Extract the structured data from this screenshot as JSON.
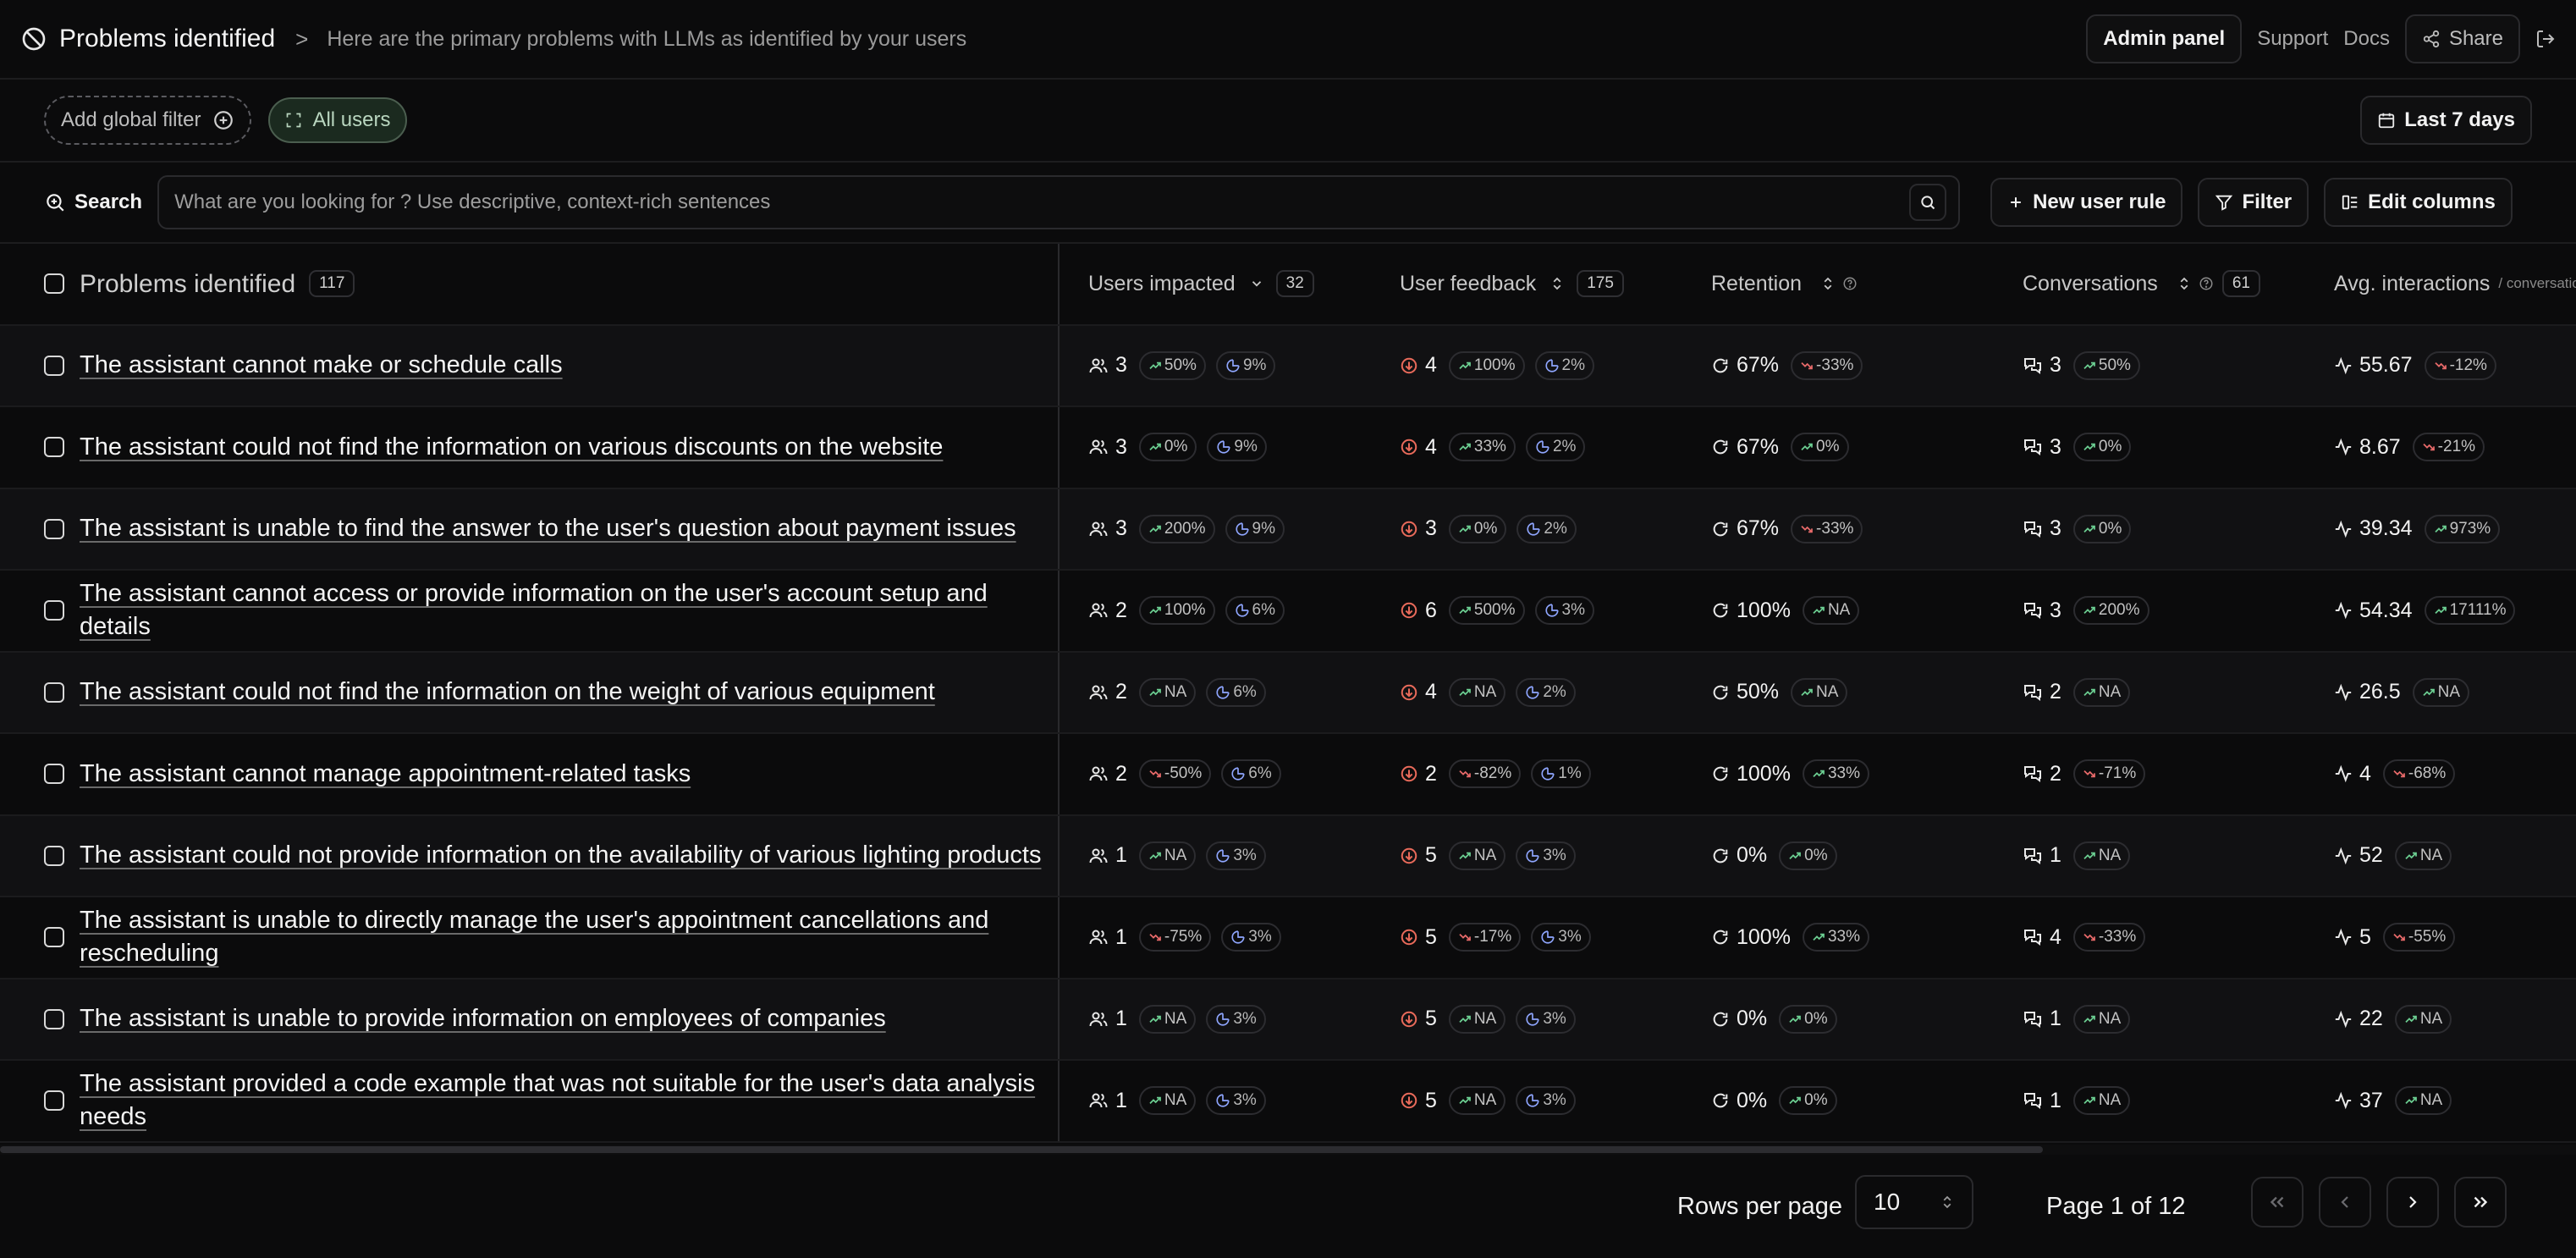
{
  "header": {
    "title": "Problems identified",
    "separator": ">",
    "subtitle": "Here are the primary problems with LLMs as identified by your users",
    "admin_label": "Admin panel",
    "support_label": "Support",
    "docs_label": "Docs",
    "share_label": "Share"
  },
  "filters": {
    "add_global_label": "Add global filter",
    "all_users_label": "All users",
    "date_range_label": "Last 7 days"
  },
  "search": {
    "label": "Search",
    "placeholder": "What are you looking for ? Use descriptive, context-rich sentences",
    "new_rule_label": "New user rule",
    "filter_label": "Filter",
    "edit_columns_label": "Edit columns"
  },
  "table": {
    "columns": {
      "problems": {
        "label": "Problems identified",
        "count": "117"
      },
      "users": {
        "label": "Users impacted",
        "count": "32"
      },
      "feedback": {
        "label": "User feedback",
        "count": "175"
      },
      "retention": {
        "label": "Retention"
      },
      "conversations": {
        "label": "Conversations",
        "count": "61"
      },
      "avg": {
        "label": "Avg. interactions",
        "suffix": "/ conversation"
      }
    },
    "rows": [
      {
        "problem": "The assistant cannot make or schedule calls",
        "users": {
          "value": "3",
          "trend": "50%",
          "trend_dir": "up",
          "share": "9%"
        },
        "feedback": {
          "value": "4",
          "trend": "100%",
          "trend_dir": "up",
          "share": "2%"
        },
        "retention": {
          "value": "67%",
          "trend": "-33%",
          "trend_dir": "down"
        },
        "conversations": {
          "value": "3",
          "trend": "50%",
          "trend_dir": "up"
        },
        "avg": {
          "value": "55.67",
          "trend": "-12%",
          "trend_dir": "down"
        }
      },
      {
        "problem": "The assistant could not find the information on various discounts on the website",
        "users": {
          "value": "3",
          "trend": "0%",
          "trend_dir": "up",
          "share": "9%"
        },
        "feedback": {
          "value": "4",
          "trend": "33%",
          "trend_dir": "up",
          "share": "2%"
        },
        "retention": {
          "value": "67%",
          "trend": "0%",
          "trend_dir": "up"
        },
        "conversations": {
          "value": "3",
          "trend": "0%",
          "trend_dir": "up"
        },
        "avg": {
          "value": "8.67",
          "trend": "-21%",
          "trend_dir": "down"
        }
      },
      {
        "problem": "The assistant is unable to find the answer to the user's question about payment issues",
        "users": {
          "value": "3",
          "trend": "200%",
          "trend_dir": "up",
          "share": "9%"
        },
        "feedback": {
          "value": "3",
          "trend": "0%",
          "trend_dir": "up",
          "share": "2%"
        },
        "retention": {
          "value": "67%",
          "trend": "-33%",
          "trend_dir": "down"
        },
        "conversations": {
          "value": "3",
          "trend": "0%",
          "trend_dir": "up"
        },
        "avg": {
          "value": "39.34",
          "trend": "973%",
          "trend_dir": "up"
        }
      },
      {
        "problem": "The assistant cannot access or provide information on the user's account setup and details",
        "users": {
          "value": "2",
          "trend": "100%",
          "trend_dir": "up",
          "share": "6%"
        },
        "feedback": {
          "value": "6",
          "trend": "500%",
          "trend_dir": "up",
          "share": "3%"
        },
        "retention": {
          "value": "100%",
          "trend": "NA",
          "trend_dir": "up"
        },
        "conversations": {
          "value": "3",
          "trend": "200%",
          "trend_dir": "up"
        },
        "avg": {
          "value": "54.34",
          "trend": "17111%",
          "trend_dir": "up"
        }
      },
      {
        "problem": "The assistant could not find the information on the weight of various equipment",
        "users": {
          "value": "2",
          "trend": "NA",
          "trend_dir": "up",
          "share": "6%"
        },
        "feedback": {
          "value": "4",
          "trend": "NA",
          "trend_dir": "up",
          "share": "2%"
        },
        "retention": {
          "value": "50%",
          "trend": "NA",
          "trend_dir": "up"
        },
        "conversations": {
          "value": "2",
          "trend": "NA",
          "trend_dir": "up"
        },
        "avg": {
          "value": "26.5",
          "trend": "NA",
          "trend_dir": "up"
        }
      },
      {
        "problem": "The assistant cannot manage appointment-related tasks",
        "users": {
          "value": "2",
          "trend": "-50%",
          "trend_dir": "down",
          "share": "6%"
        },
        "feedback": {
          "value": "2",
          "trend": "-82%",
          "trend_dir": "down",
          "share": "1%"
        },
        "retention": {
          "value": "100%",
          "trend": "33%",
          "trend_dir": "up"
        },
        "conversations": {
          "value": "2",
          "trend": "-71%",
          "trend_dir": "down"
        },
        "avg": {
          "value": "4",
          "trend": "-68%",
          "trend_dir": "down"
        }
      },
      {
        "problem": "The assistant could not provide information on the availability of various lighting products",
        "users": {
          "value": "1",
          "trend": "NA",
          "trend_dir": "up",
          "share": "3%"
        },
        "feedback": {
          "value": "5",
          "trend": "NA",
          "trend_dir": "up",
          "share": "3%"
        },
        "retention": {
          "value": "0%",
          "trend": "0%",
          "trend_dir": "up"
        },
        "conversations": {
          "value": "1",
          "trend": "NA",
          "trend_dir": "up"
        },
        "avg": {
          "value": "52",
          "trend": "NA",
          "trend_dir": "up"
        }
      },
      {
        "problem": "The assistant is unable to directly manage the user's appointment cancellations and rescheduling",
        "users": {
          "value": "1",
          "trend": "-75%",
          "trend_dir": "down",
          "share": "3%"
        },
        "feedback": {
          "value": "5",
          "trend": "-17%",
          "trend_dir": "down",
          "share": "3%"
        },
        "retention": {
          "value": "100%",
          "trend": "33%",
          "trend_dir": "up"
        },
        "conversations": {
          "value": "4",
          "trend": "-33%",
          "trend_dir": "down"
        },
        "avg": {
          "value": "5",
          "trend": "-55%",
          "trend_dir": "down"
        }
      },
      {
        "problem": "The assistant is unable to provide information on employees of companies",
        "users": {
          "value": "1",
          "trend": "NA",
          "trend_dir": "up",
          "share": "3%"
        },
        "feedback": {
          "value": "5",
          "trend": "NA",
          "trend_dir": "up",
          "share": "3%"
        },
        "retention": {
          "value": "0%",
          "trend": "0%",
          "trend_dir": "up"
        },
        "conversations": {
          "value": "1",
          "trend": "NA",
          "trend_dir": "up"
        },
        "avg": {
          "value": "22",
          "trend": "NA",
          "trend_dir": "up"
        }
      },
      {
        "problem": "The assistant provided a code example that was not suitable for the user's data analysis needs",
        "users": {
          "value": "1",
          "trend": "NA",
          "trend_dir": "up",
          "share": "3%"
        },
        "feedback": {
          "value": "5",
          "trend": "NA",
          "trend_dir": "up",
          "share": "3%"
        },
        "retention": {
          "value": "0%",
          "trend": "0%",
          "trend_dir": "up"
        },
        "conversations": {
          "value": "1",
          "trend": "NA",
          "trend_dir": "up"
        },
        "avg": {
          "value": "37",
          "trend": "NA",
          "trend_dir": "up"
        }
      }
    ]
  },
  "pagination": {
    "rows_per_page_label": "Rows per page",
    "rows_per_page_value": "10",
    "page_label": "Page 1 of 12"
  },
  "colors": {
    "trend_up": "#6ccf92",
    "trend_down": "#e86a6a",
    "share": "#8fa6ff",
    "accent_pill": "#1b2a1f"
  }
}
